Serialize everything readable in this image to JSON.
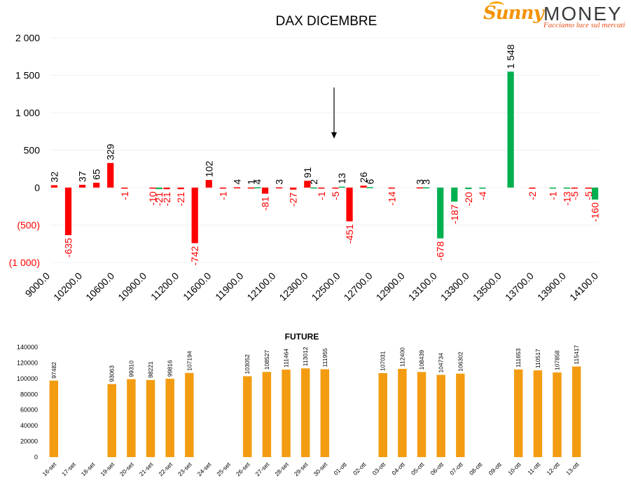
{
  "logo": {
    "brand_left": "Sunny",
    "brand_right": "MONEY",
    "tagline": "Facciamo luce sul mercati"
  },
  "chart_data": [
    {
      "type": "bar",
      "title": "DAX DICEMBRE",
      "ylim": [
        -1000,
        2000
      ],
      "yticks": [
        {
          "value": 2000,
          "label": "2 000"
        },
        {
          "value": 1500,
          "label": "1 500"
        },
        {
          "value": 1000,
          "label": "1 000"
        },
        {
          "value": 500,
          "label": "500"
        },
        {
          "value": 0,
          "label": "0"
        },
        {
          "value": -500,
          "label": "(500)"
        },
        {
          "value": -1000,
          "label": "(1 000)"
        }
      ],
      "grid": true,
      "tick_labels": [
        "9000.0",
        "10200.0",
        "10600.0",
        "10900.0",
        "11200.0",
        "11600.0",
        "11900.0",
        "12100.0",
        "12300.0",
        "12500.0",
        "12700.0",
        "12900.0",
        "13100.0",
        "13300.0",
        "13500.0",
        "13700.0",
        "13900.0",
        "14100.0"
      ],
      "series": [
        {
          "color": "#ff0000",
          "values": [
            32,
            -635,
            37,
            65,
            329,
            -1,
            null,
            -10,
            -21,
            -21,
            -742,
            102,
            -1,
            4,
            1,
            -81,
            3,
            -27,
            91,
            -1,
            -5,
            -451,
            26,
            null,
            -14,
            null,
            3,
            null,
            null,
            null,
            null,
            null,
            null,
            null,
            -2,
            null,
            null,
            -5,
            -5
          ]
        },
        {
          "color": "#00b050",
          "values": [
            null,
            null,
            null,
            null,
            null,
            null,
            null,
            -21,
            null,
            null,
            null,
            null,
            null,
            null,
            4,
            null,
            null,
            null,
            2,
            null,
            13,
            null,
            6,
            null,
            null,
            null,
            3,
            -678,
            -187,
            -20,
            -4,
            null,
            1548,
            null,
            null,
            -1,
            -13,
            null,
            -160
          ]
        }
      ],
      "annotation": "arrow pointing down at 12500.0"
    },
    {
      "type": "bar",
      "title": "FUTURE",
      "ylim": [
        0,
        140000
      ],
      "yticks": [
        "0",
        "20000",
        "40000",
        "60000",
        "80000",
        "100000",
        "120000",
        "140000"
      ],
      "color": "#f39c12",
      "categories": [
        "16-set",
        "17-set",
        "18-set",
        "19-set",
        "20-set",
        "21-set",
        "22-set",
        "23-set",
        "24-set",
        "25-set",
        "26-set",
        "27-set",
        "28-set",
        "29-set",
        "30-set",
        "01-ott",
        "02-ott",
        "03-ott",
        "04-ott",
        "05-ott",
        "06-ott",
        "07-ott",
        "08-ott",
        "09-ott",
        "10-ott",
        "11-ott",
        "12-ott",
        "13-ott"
      ],
      "values": [
        97482,
        null,
        null,
        93063,
        99310,
        98221,
        99816,
        107194,
        null,
        null,
        103052,
        108527,
        111464,
        113012,
        111955,
        null,
        null,
        107031,
        112400,
        108439,
        104734,
        106302,
        null,
        null,
        111653,
        110517,
        107858,
        115417
      ]
    }
  ]
}
